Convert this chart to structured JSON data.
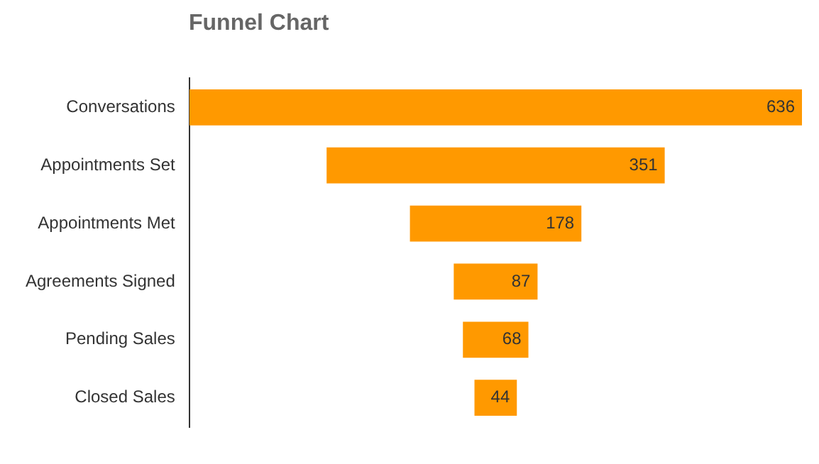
{
  "chart_data": {
    "type": "other",
    "title": "Funnel Chart",
    "categories": [
      "Conversations",
      "Appointments Set",
      "Appointments Met",
      "Agreements Signed",
      "Pending Sales",
      "Closed Sales"
    ],
    "values": [
      636,
      351,
      178,
      87,
      68,
      44
    ],
    "color": "#ff9900",
    "data_labels": true
  }
}
